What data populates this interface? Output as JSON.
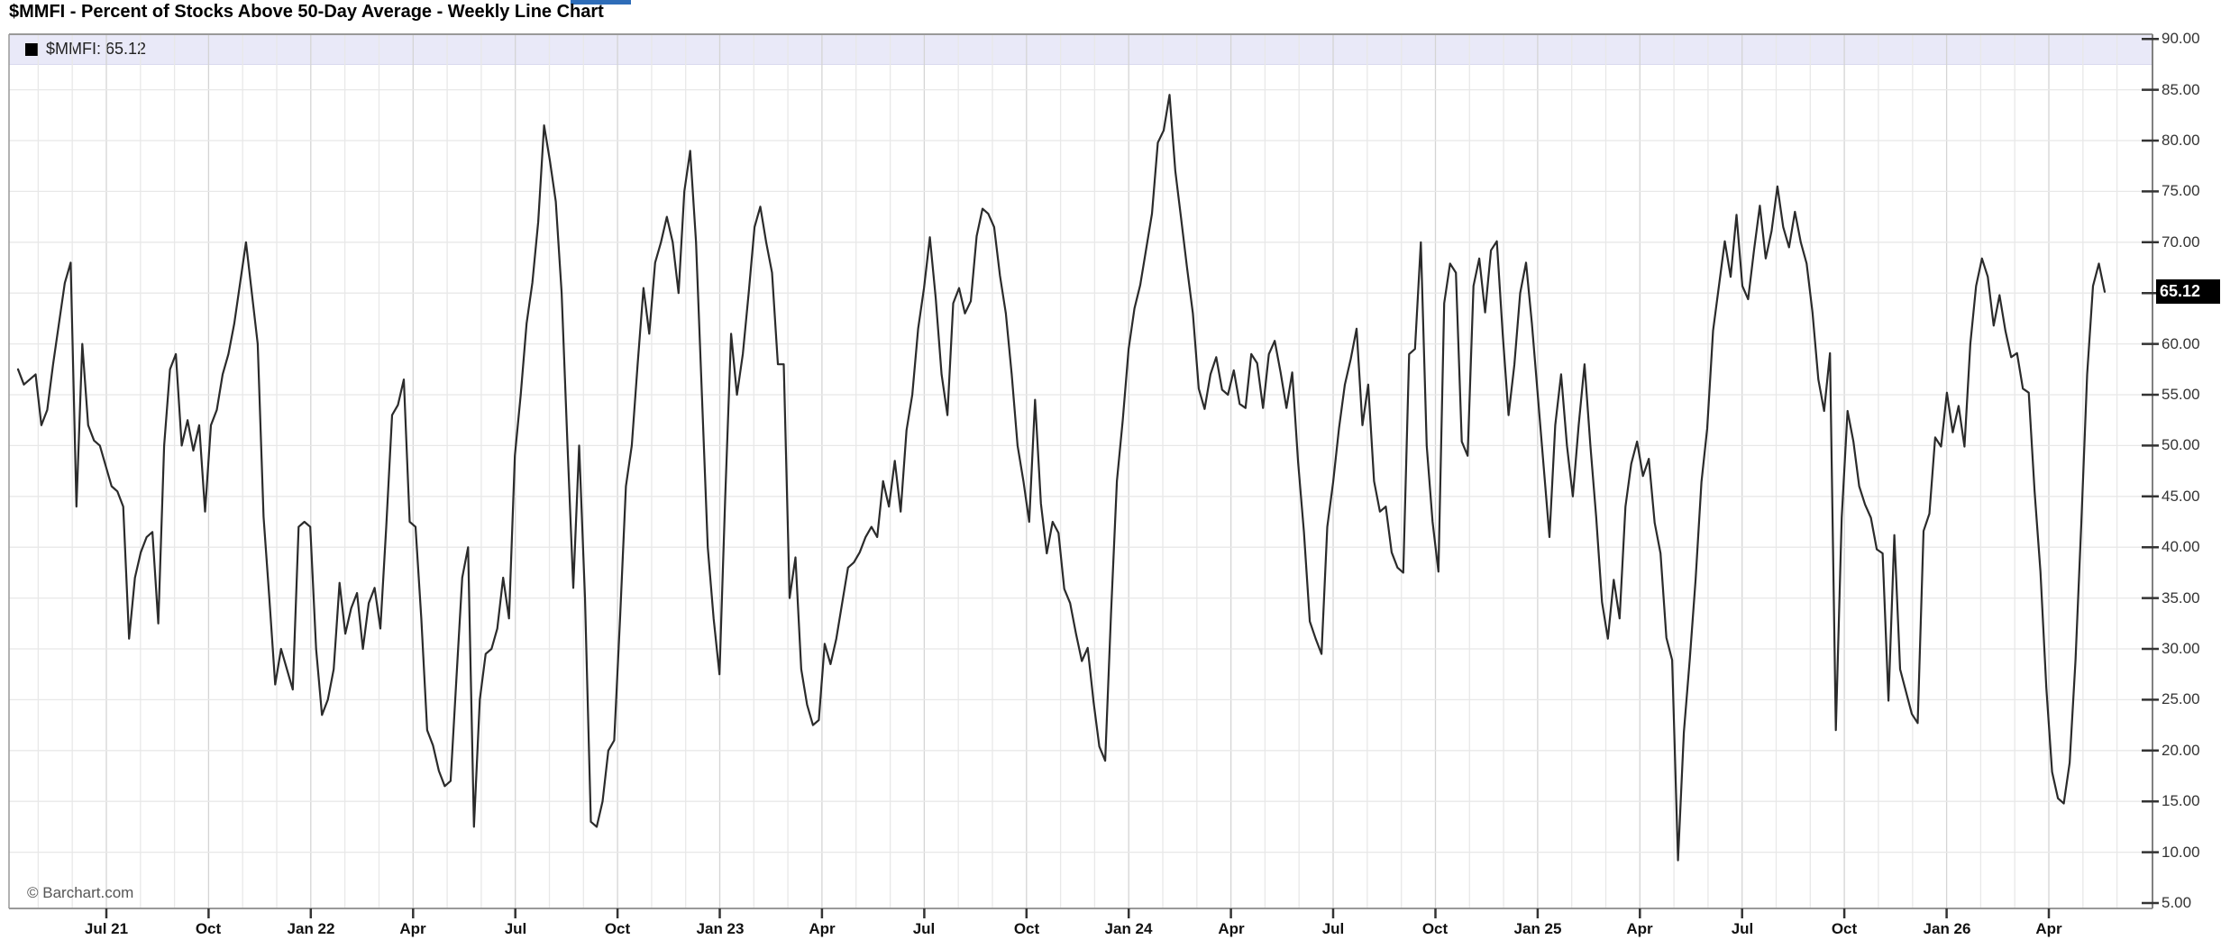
{
  "title": "$MMFI - Percent of Stocks Above 50-Day Average - Weekly Line Chart",
  "legend": {
    "swatch_color": "#000000",
    "label": "$MMFI: 65.12"
  },
  "watermark": "© Barchart.com",
  "axis": {
    "last_value_label": "65.12"
  },
  "colors": {
    "line": "#2b2b2b",
    "legend_band": "#e9e9f8",
    "grid_minor": "#e8e8e8",
    "grid_quarter": "#d4d4d4",
    "border": "#999999",
    "axis_line": "#808080",
    "tick": "#333333",
    "top_fragment_blue": "#2e6db8"
  },
  "chart_data": {
    "type": "line",
    "title": "$MMFI - Percent of Stocks Above 50-Day Average - Weekly Line Chart",
    "xlabel": "",
    "ylabel": "",
    "legend_position": "top-left band",
    "grid": "vertical monthly + horizontal every 5 units",
    "ylim": [
      5,
      90
    ],
    "y_tick_step": 5,
    "y_tick_labels": [
      "90.00",
      "85.00",
      "80.00",
      "75.00",
      "70.00",
      "60.00",
      "55.00",
      "50.00",
      "45.00",
      "40.00",
      "35.00",
      "30.00",
      "25.00",
      "20.00",
      "15.00",
      "10.00",
      "5.00"
    ],
    "x_tick_labels": [
      "Jul 21",
      "Oct",
      "Jan 22",
      "Apr",
      "Jul",
      "Oct",
      "Jan 23",
      "Apr",
      "Jul",
      "Oct",
      "Jan 24",
      "Apr",
      "Jul",
      "Oct",
      "Jan 25",
      "Apr",
      "Jul",
      "Oct",
      "Jan 26",
      "Apr"
    ],
    "last_value": 65.12,
    "series": [
      {
        "name": "$MMFI",
        "color": "#2b2b2b",
        "frequency": "weekly",
        "values": [
          57.5,
          56,
          56.5,
          57,
          52,
          53.5,
          58,
          62,
          66,
          68,
          44,
          60,
          52,
          50.5,
          50,
          48,
          46,
          45.5,
          44,
          31,
          37,
          39.5,
          41,
          41.5,
          32.5,
          50,
          57.5,
          59,
          50,
          52.5,
          49.5,
          52,
          43.5,
          52,
          53.5,
          57,
          59,
          62,
          66,
          70,
          65,
          60,
          43,
          35,
          26.5,
          30,
          28,
          26,
          42,
          42.5,
          42,
          30,
          23.5,
          25,
          28,
          36.5,
          31.5,
          34,
          35.5,
          30,
          34.5,
          36,
          32,
          42,
          53,
          54,
          56.5,
          42.5,
          42,
          33,
          22,
          20.5,
          18,
          16.5,
          17,
          27,
          37,
          40,
          12.5,
          25,
          29.5,
          30,
          32,
          37,
          33,
          49,
          55,
          62,
          66,
          72,
          81.5,
          78,
          74,
          65,
          50,
          36,
          50,
          35,
          13,
          12.5,
          15,
          20,
          21,
          33,
          46,
          50,
          58,
          65.5,
          61,
          68,
          70,
          72.5,
          70,
          65,
          75,
          79,
          70,
          55,
          40,
          33,
          27.5,
          45,
          61,
          55,
          59,
          65,
          71.5,
          73.5,
          70,
          67,
          58,
          58,
          35,
          39,
          28,
          24.5,
          22.5,
          23,
          30.5,
          28.5,
          31,
          34.5,
          38,
          38.5,
          39.5,
          41,
          42,
          41,
          46.5,
          44,
          48.5,
          43.5,
          51.5,
          55,
          61.5,
          65.5,
          70.5,
          64.5,
          57,
          53,
          64,
          65.5,
          63,
          64.2,
          70.6,
          73.3,
          72.8,
          71.5,
          66.7,
          63,
          57,
          50,
          46.5,
          42.5,
          54.5,
          44.3,
          39.4,
          42.5,
          41.4,
          35.9,
          34.5,
          31.5,
          28.8,
          30.1,
          24.8,
          20.4,
          19,
          33.5,
          46.5,
          52.5,
          59.5,
          63.5,
          65.8,
          69.3,
          72.8,
          79.8,
          81,
          84.5,
          77,
          72.3,
          67.5,
          63,
          55.6,
          53.6,
          57,
          58.7,
          55.5,
          55,
          57.4,
          54.1,
          53.7,
          59,
          58.1,
          53.7,
          59,
          60.3,
          57.2,
          53.7,
          57.2,
          48.4,
          41.5,
          32.7,
          31,
          29.5,
          42,
          46.4,
          51.7,
          56,
          58.5,
          61.5,
          52,
          56,
          46.5,
          43.5,
          44,
          39.5,
          38,
          37.5,
          59,
          59.5,
          70,
          50,
          42.5,
          37.6,
          64,
          67.9,
          67,
          50.4,
          49,
          65.7,
          68.4,
          63.1,
          69.2,
          70.1,
          61,
          53,
          58,
          65,
          68,
          62,
          55,
          48,
          41,
          52,
          57,
          50,
          45,
          52,
          58,
          50,
          43,
          34.6,
          31,
          36.8,
          33,
          44,
          48.2,
          50.4,
          47,
          48.7,
          42.4,
          39.4,
          31.1,
          28.9,
          9.2,
          21.8,
          28.9,
          36.8,
          46.4,
          51.7,
          61.3,
          65.7,
          70.1,
          66.6,
          72.7,
          65.7,
          64.4,
          69.2,
          73.6,
          68.4,
          71.1,
          75.5,
          71.5,
          69.5,
          73,
          70,
          67.9,
          63.1,
          56.5,
          53.4,
          59.1,
          22,
          42.9,
          53.4,
          50.4,
          46,
          44.2,
          42.9,
          39.8,
          39.4,
          24.9,
          41.2,
          28,
          25.8,
          23.6,
          22.7,
          41.6,
          43.3,
          50.8,
          49.9,
          55.2,
          51.3,
          53.9,
          49.9,
          60,
          65.7,
          68.4,
          66.6,
          61.8,
          64.8,
          61.3,
          58.7,
          59.1,
          55.6,
          55.2,
          45.5,
          37.6,
          26.2,
          17.9,
          15.3,
          14.8,
          18.8,
          28.9,
          42.5,
          57,
          65.7,
          67.9,
          65.12
        ]
      }
    ]
  }
}
